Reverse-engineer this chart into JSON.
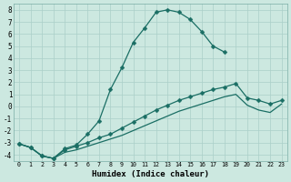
{
  "xlabel": "Humidex (Indice chaleur)",
  "bg_color": "#cce8e0",
  "grid_color": "#aacfc8",
  "line_color": "#1a6e64",
  "xlim": [
    -0.5,
    23.5
  ],
  "ylim": [
    -4.5,
    8.5
  ],
  "xticks": [
    0,
    1,
    2,
    3,
    4,
    5,
    6,
    7,
    8,
    9,
    10,
    11,
    12,
    13,
    14,
    15,
    16,
    17,
    18,
    19,
    20,
    21,
    22,
    23
  ],
  "yticks": [
    -4,
    -3,
    -2,
    -1,
    0,
    1,
    2,
    3,
    4,
    5,
    6,
    7,
    8
  ],
  "line1_x": [
    0,
    1,
    2,
    3,
    4,
    5,
    6,
    7,
    8,
    9,
    10,
    11,
    12,
    13,
    14,
    15,
    16,
    17,
    18
  ],
  "line1_y": [
    -3.1,
    -3.4,
    -4.1,
    -4.3,
    -3.5,
    -3.2,
    -2.3,
    -1.2,
    1.4,
    3.2,
    5.3,
    6.5,
    7.8,
    8.0,
    7.8,
    7.2,
    6.2,
    5.0,
    4.5
  ],
  "line2_x": [
    0,
    1,
    2,
    3,
    4,
    5,
    6,
    7,
    8,
    9,
    10,
    11,
    12,
    13,
    14,
    15,
    16,
    17,
    18,
    19,
    20,
    21,
    22,
    23
  ],
  "line2_y": [
    -3.1,
    -3.4,
    -4.1,
    -4.3,
    -3.6,
    -3.3,
    -3.0,
    -2.6,
    -2.3,
    -1.8,
    -1.3,
    -0.8,
    -0.3,
    0.1,
    0.5,
    0.8,
    1.1,
    1.4,
    1.6,
    1.9,
    0.7,
    0.5,
    0.2,
    0.5
  ],
  "line3_x": [
    0,
    1,
    2,
    3,
    4,
    5,
    6,
    7,
    8,
    9,
    10,
    11,
    12,
    13,
    14,
    15,
    16,
    17,
    18,
    19,
    20,
    21,
    22,
    23
  ],
  "line3_y": [
    -3.1,
    -3.4,
    -4.1,
    -4.3,
    -3.8,
    -3.6,
    -3.3,
    -3.0,
    -2.7,
    -2.4,
    -2.0,
    -1.6,
    -1.2,
    -0.8,
    -0.4,
    -0.1,
    0.2,
    0.5,
    0.8,
    1.0,
    0.1,
    -0.3,
    -0.5,
    0.2
  ],
  "marker": "D",
  "marker_size": 2.5
}
